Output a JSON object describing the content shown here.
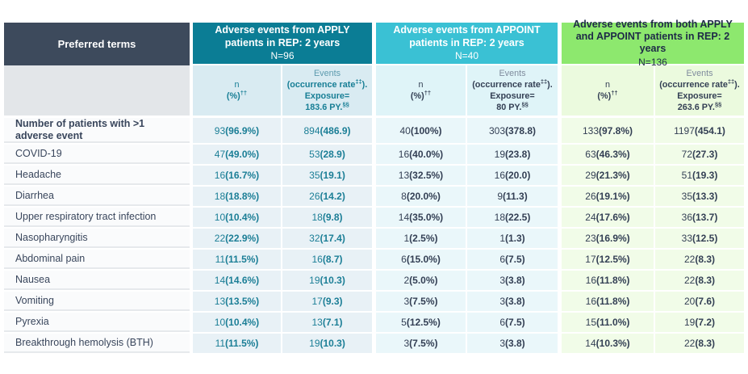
{
  "table": {
    "preferred_terms_header": "Preferred terms",
    "groups": [
      {
        "title": "Adverse events from APPLY patients in REP: 2 years",
        "n_label": "N=96",
        "sub_n": "n (%)††",
        "sub_events_lines": [
          "Events",
          "(occurrence rate‡‡).",
          "Exposure=",
          "183.6 PY.§§"
        ]
      },
      {
        "title": "Adverse events from APPOINT patients in REP: 2 years",
        "n_label": "N=40",
        "sub_n": "n (%)††",
        "sub_events_lines": [
          "Events",
          "(occurrence rate‡‡).",
          "Exposure=",
          "80 PY.§§"
        ]
      },
      {
        "title": "Adverse events from both APPLY and APPOINT patients in REP: 2 years",
        "n_label": "N=136",
        "sub_n": "n (%)††",
        "sub_events_lines": [
          "Events",
          "(occurrence rate‡‡).",
          "Exposure=",
          "263.6 PY.§§"
        ]
      }
    ],
    "rows": [
      {
        "term": "Number of patients with >1 adverse event",
        "bold": true,
        "cells": [
          "93 (96.9%)",
          "894 (486.9)",
          "40 (100%)",
          "303 (378.8)",
          "133 (97.8%)",
          "1197 (454.1)"
        ]
      },
      {
        "term": "COVID-19",
        "bold": false,
        "cells": [
          "47 (49.0%)",
          "53 (28.9)",
          "16 (40.0%)",
          "19 (23.8)",
          "63 (46.3%)",
          "72 (27.3)"
        ]
      },
      {
        "term": "Headache",
        "bold": false,
        "cells": [
          "16 (16.7%)",
          "35 (19.1)",
          "13 (32.5%)",
          "16 (20.0)",
          "29 (21.3%)",
          "51 (19.3)"
        ]
      },
      {
        "term": "Diarrhea",
        "bold": false,
        "cells": [
          "18 (18.8%)",
          "26 (14.2)",
          "8 (20.0%)",
          "9 (11.3)",
          "26 (19.1%)",
          "35 (13.3)"
        ]
      },
      {
        "term": "Upper respiratory tract infection",
        "bold": false,
        "cells": [
          "10 (10.4%)",
          "18 (9.8)",
          "14 (35.0%)",
          "18 (22.5)",
          "24 (17.6%)",
          "36 (13.7)"
        ]
      },
      {
        "term": "Nasopharyngitis",
        "bold": false,
        "cells": [
          "22 (22.9%)",
          "32 (17.4)",
          "1 (2.5%)",
          "1 (1.3)",
          "23 (16.9%)",
          "33 (12.5)"
        ]
      },
      {
        "term": "Abdominal pain",
        "bold": false,
        "cells": [
          "11 (11.5%)",
          "16 (8.7)",
          "6 (15.0%)",
          "6 (7.5)",
          "17 (12.5%)",
          "22 (8.3)"
        ]
      },
      {
        "term": "Nausea",
        "bold": false,
        "cells": [
          "14 (14.6%)",
          "19 (10.3)",
          "2 (5.0%)",
          "3 (3.8)",
          "16 (11.8%)",
          "22 (8.3)"
        ]
      },
      {
        "term": "Vomiting",
        "bold": false,
        "cells": [
          "13 (13.5%)",
          "17 (9.3)",
          "3 (7.5%)",
          "3 (3.8)",
          "16 (11.8%)",
          "20 (7.6)"
        ]
      },
      {
        "term": "Pyrexia",
        "bold": false,
        "cells": [
          "10 (10.4%)",
          "13 (7.1)",
          "5 (12.5%)",
          "6 (7.5)",
          "15 (11.0%)",
          "19 (7.2)"
        ]
      },
      {
        "term": "Breakthrough hemolysis (BTH)",
        "bold": false,
        "cells": [
          "11 (11.5%)",
          "19 (10.3)",
          "3 (7.5%)",
          "3 (3.8)",
          "14 (10.3%)",
          "22 (8.3)"
        ]
      }
    ]
  },
  "colors": {
    "header_dark": "#3d4a5c",
    "group_apply": "#0b7d95",
    "group_appoint": "#3ac1d4",
    "group_both": "#8de86e",
    "text_teal": "#1b7e96",
    "text_navy": "#333f54"
  }
}
